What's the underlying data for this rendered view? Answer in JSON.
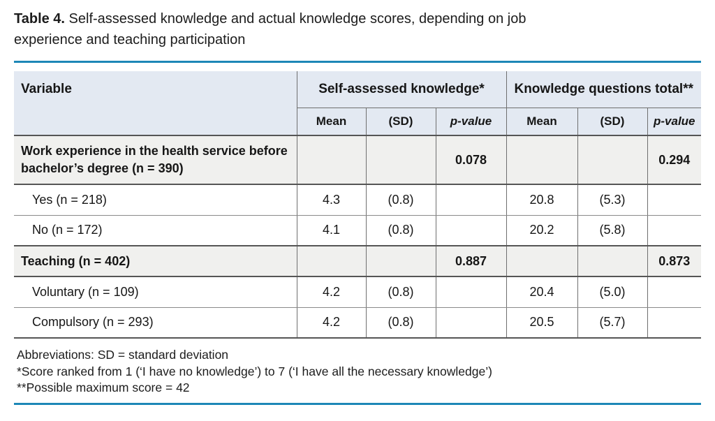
{
  "title": {
    "prefix": "Table 4.",
    "line1": " Self-assessed knowledge and actual knowledge scores, depending on job",
    "line2": "experience and teaching participation"
  },
  "table": {
    "variable_header": "Variable",
    "group_headers": {
      "self_assessed": "Self-assessed knowledge*",
      "knowledge_total": "Knowledge questions total**"
    },
    "sub_headers": {
      "mean1": "Mean",
      "sd1": "(SD)",
      "p1": "p-value",
      "mean2": "Mean",
      "sd2": "(SD)",
      "p2": "p-value"
    },
    "rows": [
      {
        "label": "Work experience in the health service before bachelor’s degree (n = 390)",
        "mean1": "",
        "sd1": "",
        "p1": "0.078",
        "mean2": "",
        "sd2": "",
        "p2": "0.294"
      },
      {
        "label": "Yes (n = 218)",
        "mean1": "4.3",
        "sd1": "(0.8)",
        "p1": "",
        "mean2": "20.8",
        "sd2": "(5.3)",
        "p2": ""
      },
      {
        "label": "No (n = 172)",
        "mean1": "4.1",
        "sd1": "(0.8)",
        "p1": "",
        "mean2": "20.2",
        "sd2": "(5.8)",
        "p2": ""
      },
      {
        "label": "Teaching (n = 402)",
        "mean1": "",
        "sd1": "",
        "p1": "0.887",
        "mean2": "",
        "sd2": "",
        "p2": "0.873"
      },
      {
        "label": "Voluntary (n = 109)",
        "mean1": "4.2",
        "sd1": "(0.8)",
        "p1": "",
        "mean2": "20.4",
        "sd2": "(5.0)",
        "p2": ""
      },
      {
        "label": "Compulsory (n = 293)",
        "mean1": "4.2",
        "sd1": "(0.8)",
        "p1": "",
        "mean2": "20.5",
        "sd2": "(5.7)",
        "p2": ""
      }
    ],
    "footnotes": {
      "abbreviations": "Abbreviations: SD = standard deviation",
      "star": "*Score ranked from 1 (‘I have no knowledge’) to 7 (‘I have all the necessary knowledge’)",
      "double_star": "**Possible maximum score = 42"
    }
  },
  "colors": {
    "rule_teal": "#1d87b7",
    "header_bg": "#e3e9f2",
    "group_row_bg": "#f0f0ee"
  }
}
